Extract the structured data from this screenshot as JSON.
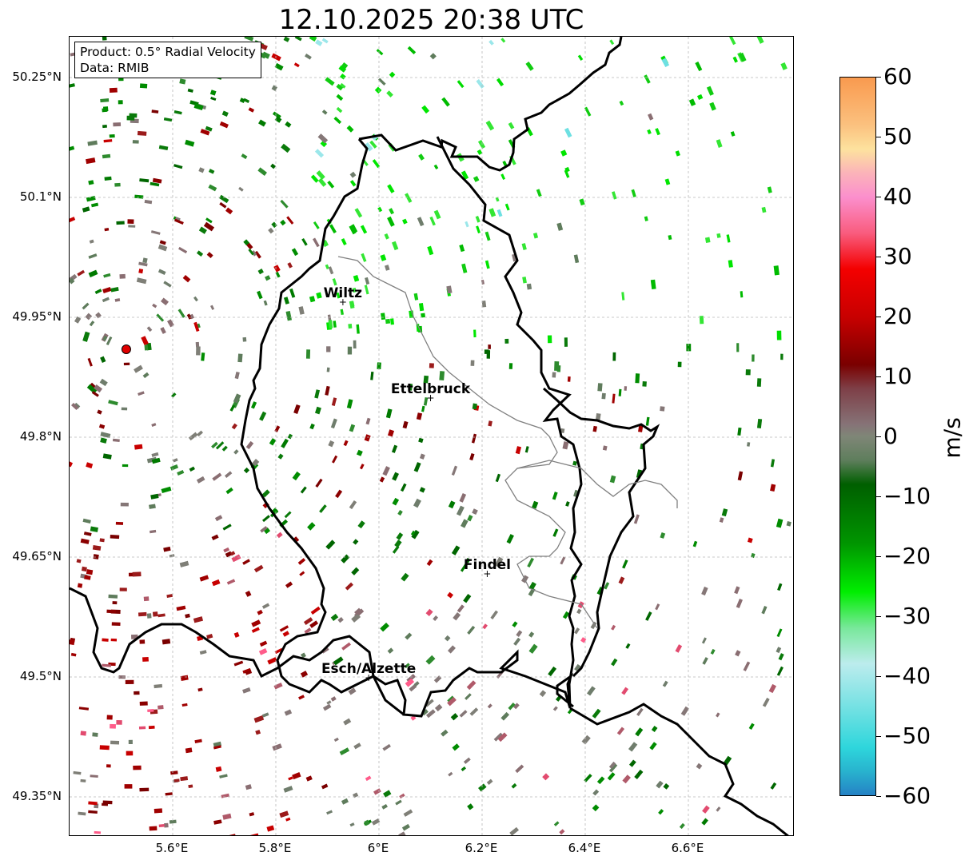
{
  "title": "12.10.2025 20:38 UTC",
  "infobox": {
    "product": "Product: 0.5° Radial Velocity",
    "data": "Data: RMIB"
  },
  "latitude_labels": [
    "50.25°N",
    "50.1°N",
    "49.95°N",
    "49.8°N",
    "49.65°N",
    "49.5°N",
    "49.35°N"
  ],
  "longitude_labels": [
    "5.6°E",
    "5.8°E",
    "6°E",
    "6.2°E",
    "6.4°E",
    "6.6°E"
  ],
  "cities": [
    {
      "name": "Wiltz",
      "lon": 5.93,
      "lat": 49.97
    },
    {
      "name": "Ettelbruck",
      "lon": 6.1,
      "lat": 49.85
    },
    {
      "name": "Findel",
      "lon": 6.21,
      "lat": 49.63
    },
    {
      "name": "Esch/Alzette",
      "lon": 5.98,
      "lat": 49.5
    }
  ],
  "radar_site": {
    "lon": 5.51,
    "lat": 49.91
  },
  "colorbar": {
    "unit": "m/s",
    "ticks": [
      "60",
      "50",
      "40",
      "30",
      "20",
      "10",
      "0",
      "−10",
      "−20",
      "−30",
      "−40",
      "−50",
      "−60"
    ],
    "range": [
      -60,
      60
    ],
    "stops": [
      {
        "v": 60,
        "c": "#f99a4f"
      },
      {
        "v": 52,
        "c": "#fbc17f"
      },
      {
        "v": 48,
        "c": "#fde29e"
      },
      {
        "v": 44,
        "c": "#fbb3b9"
      },
      {
        "v": 40,
        "c": "#fb8fcd"
      },
      {
        "v": 34,
        "c": "#f95c7e"
      },
      {
        "v": 28,
        "c": "#f40000"
      },
      {
        "v": 20,
        "c": "#c80000"
      },
      {
        "v": 12,
        "c": "#7a0000"
      },
      {
        "v": 8,
        "c": "#7e3f47"
      },
      {
        "v": 2,
        "c": "#867377"
      },
      {
        "v": 0,
        "c": "#7f8677"
      },
      {
        "v": -4,
        "c": "#5e7e5c"
      },
      {
        "v": -8,
        "c": "#005f00"
      },
      {
        "v": -18,
        "c": "#009600"
      },
      {
        "v": -26,
        "c": "#00ee00"
      },
      {
        "v": -32,
        "c": "#78e89a"
      },
      {
        "v": -38,
        "c": "#bceced"
      },
      {
        "v": -46,
        "c": "#6de0e2"
      },
      {
        "v": -52,
        "c": "#2ed6dc"
      },
      {
        "v": -56,
        "c": "#28b3ce"
      },
      {
        "v": -60,
        "c": "#2582c5"
      }
    ]
  }
}
